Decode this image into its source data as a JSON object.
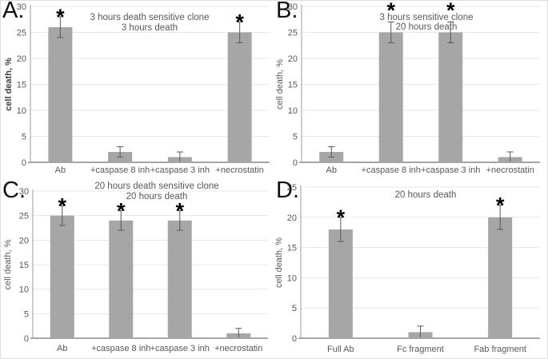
{
  "figure": {
    "background": "#ffffff",
    "border_color": "#dedede",
    "description_visible_text_only": true
  },
  "style": {
    "bar_fill": "#a6a6a6",
    "grid_color": "#e8e8e8",
    "y_axis_color": "#9b9b9b",
    "x_axis_color": "#a6a6a6",
    "text_color": "#595959",
    "error_bar_color": "#595959",
    "star_color": "#000000",
    "panel_letter_color": "#111111",
    "ylabel_bold_color": "#404040",
    "significance_marker": "*"
  },
  "chart_data": [
    {
      "type": "bar",
      "panel_label": "A.",
      "title_lines": [
        "3 hours death sensitive clone",
        "3 hours death"
      ],
      "ylabel": "cell death, %",
      "ylabel_bold": true,
      "ylim": [
        0,
        30
      ],
      "ytick_step": 5,
      "yticks": [
        0,
        5,
        10,
        15,
        20,
        25,
        30
      ],
      "grid": true,
      "categories": [
        "Ab",
        "+caspase 8 inh",
        "+caspase 3 inh",
        "+necrostatin"
      ],
      "values": [
        26,
        2,
        1,
        25
      ],
      "errors": [
        2,
        1,
        1,
        2
      ],
      "significant": [
        true,
        false,
        false,
        true
      ]
    },
    {
      "type": "bar",
      "panel_label": "B.",
      "title_lines": [
        "3 hours sensitive clone",
        "20 hours death"
      ],
      "ylabel": "cell death, %",
      "ylabel_bold": false,
      "ylim": [
        0,
        30
      ],
      "ytick_step": 5,
      "yticks": [
        0,
        5,
        10,
        15,
        20,
        25,
        30
      ],
      "grid": true,
      "categories": [
        "Ab",
        "+caspase 8 inh",
        "+caspase 3 inh",
        "+necrostatin"
      ],
      "values": [
        2,
        25,
        25,
        1
      ],
      "errors": [
        1,
        2,
        2,
        1
      ],
      "significant": [
        false,
        true,
        true,
        false
      ]
    },
    {
      "type": "bar",
      "panel_label": "C.",
      "title_lines": [
        "20 hours death sensitive clone",
        "20 hours death"
      ],
      "ylabel": "cell death, %",
      "ylabel_bold": false,
      "ylim": [
        0,
        30
      ],
      "ytick_step": 5,
      "yticks": [
        0,
        5,
        10,
        15,
        20,
        25,
        30
      ],
      "grid": true,
      "categories": [
        "Ab",
        "+caspase 8 inh",
        "+caspase 3 inh",
        "+necrostatin"
      ],
      "values": [
        25,
        24,
        24,
        1
      ],
      "errors": [
        2,
        2,
        2,
        1
      ],
      "significant": [
        true,
        true,
        true,
        false
      ]
    },
    {
      "type": "bar",
      "panel_label": "D.",
      "title_lines": [
        "20 hours death"
      ],
      "ylabel": "cell death, %",
      "ylabel_bold": false,
      "ylim": [
        0,
        25
      ],
      "ytick_step": 5,
      "yticks": [
        0,
        5,
        10,
        15,
        20,
        25
      ],
      "grid": true,
      "categories": [
        "Full Ab",
        "Fc fragment",
        "Fab fragment"
      ],
      "values": [
        18,
        1,
        20
      ],
      "errors": [
        2,
        1,
        2
      ],
      "significant": [
        true,
        false,
        true
      ]
    }
  ]
}
